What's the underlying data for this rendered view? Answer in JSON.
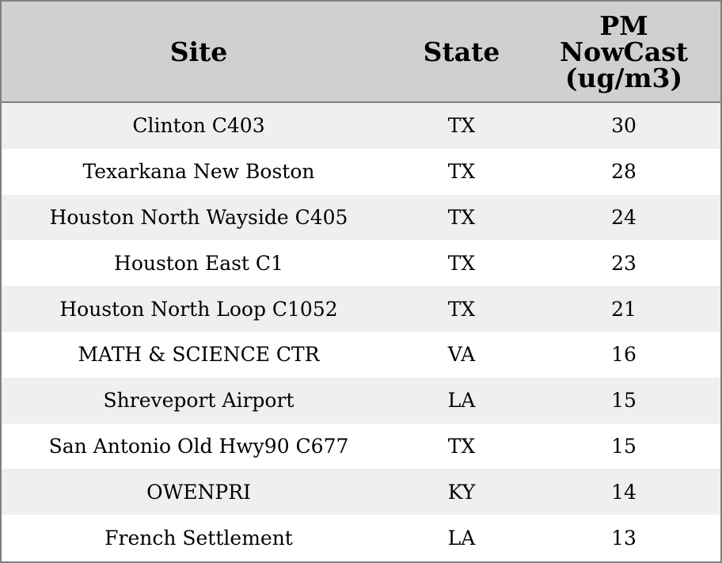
{
  "table": {
    "columns": [
      "Site",
      "State",
      "PM NowCast (ug/m3)"
    ],
    "rows": [
      [
        "Clinton C403",
        "TX",
        30
      ],
      [
        "Texarkana New Boston",
        "TX",
        28
      ],
      [
        "Houston North Wayside C405",
        "TX",
        24
      ],
      [
        "Houston East C1",
        "TX",
        23
      ],
      [
        "Houston North Loop C1052",
        "TX",
        21
      ],
      [
        "MATH & SCIENCE CTR",
        "VA",
        16
      ],
      [
        "Shreveport Airport",
        "LA",
        15
      ],
      [
        "San Antonio Old Hwy90 C677",
        "TX",
        15
      ],
      [
        "OWENPRI",
        "KY",
        14
      ],
      [
        "French Settlement",
        "LA",
        13
      ]
    ]
  }
}
